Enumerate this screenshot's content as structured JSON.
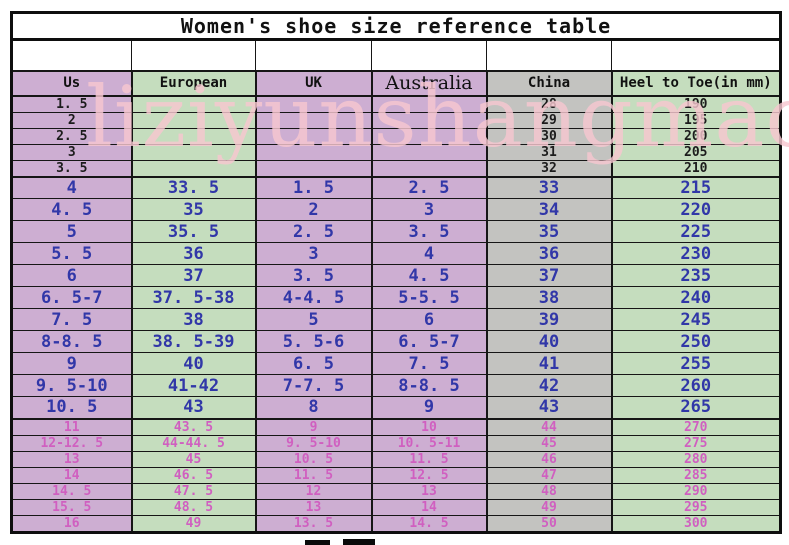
{
  "page": {
    "title": "Women's shoe size reference table",
    "watermark": "liziyunshangmao"
  },
  "table": {
    "headers": [
      "Us",
      "European",
      "UK",
      "Australia",
      "China",
      "Heel to Toe(in mm)"
    ],
    "column_bgs": [
      "purple",
      "green",
      "purple",
      "purple",
      "gray",
      "green"
    ],
    "sections": [
      {
        "name": "small-sizes-black",
        "text_color": "#1c1c1c",
        "rows": [
          [
            "1. 5",
            "",
            "",
            "",
            "28",
            "190"
          ],
          [
            "2",
            "",
            "",
            "",
            "29",
            "195"
          ],
          [
            "2. 5",
            "",
            "",
            "",
            "30",
            "200"
          ],
          [
            "3",
            "",
            "",
            "",
            "31",
            "205"
          ],
          [
            "3. 5",
            "",
            "",
            "",
            "32",
            "210"
          ]
        ]
      },
      {
        "name": "standard-sizes-blue",
        "text_color": "#3137a8",
        "rows": [
          [
            "4",
            "33. 5",
            "1. 5",
            "2. 5",
            "33",
            "215"
          ],
          [
            "4. 5",
            "35",
            "2",
            "3",
            "34",
            "220"
          ],
          [
            "5",
            "35. 5",
            "2. 5",
            "3. 5",
            "35",
            "225"
          ],
          [
            "5. 5",
            "36",
            "3",
            "4",
            "36",
            "230"
          ],
          [
            "6",
            "37",
            "3. 5",
            "4. 5",
            "37",
            "235"
          ],
          [
            "6. 5-7",
            "37. 5-38",
            "4-4. 5",
            "5-5. 5",
            "38",
            "240"
          ],
          [
            "7. 5",
            "38",
            "5",
            "6",
            "39",
            "245"
          ],
          [
            "8-8. 5",
            "38. 5-39",
            "5. 5-6",
            "6. 5-7",
            "40",
            "250"
          ],
          [
            "9",
            "40",
            "6. 5",
            "7. 5",
            "41",
            "255"
          ],
          [
            "9. 5-10",
            "41-42",
            "7-7. 5",
            "8-8. 5",
            "42",
            "260"
          ],
          [
            "10. 5",
            "43",
            "8",
            "9",
            "43",
            "265"
          ]
        ]
      },
      {
        "name": "large-sizes-pink",
        "text_color": "#d05fc0",
        "rows": [
          [
            "11",
            "43. 5",
            "9",
            "10",
            "44",
            "270"
          ],
          [
            "12-12. 5",
            "44-44. 5",
            "9. 5-10",
            "10. 5-11",
            "45",
            "275"
          ],
          [
            "13",
            "45",
            "10. 5",
            "11. 5",
            "46",
            "280"
          ],
          [
            "14",
            "46. 5",
            "11. 5",
            "12. 5",
            "47",
            "285"
          ],
          [
            "14. 5",
            "47. 5",
            "12",
            "13",
            "48",
            "290"
          ],
          [
            "15. 5",
            "48. 5",
            "13",
            "14",
            "49",
            "295"
          ],
          [
            "16",
            "49",
            "13. 5",
            "14. 5",
            "50",
            "300"
          ]
        ]
      }
    ]
  },
  "colors": {
    "purple": "#cdaed2",
    "green": "#c5ddbe",
    "gray": "#c3c3c0",
    "white": "#ffffff",
    "black_text": "#1c1c1c",
    "blue_text": "#3137a8",
    "pink_text": "#d05fc0",
    "border": "#0e0e0e",
    "watermark_pink": "#f6c7cf"
  }
}
